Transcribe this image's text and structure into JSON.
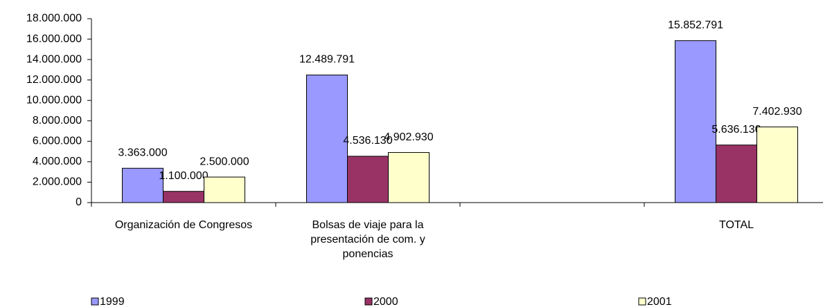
{
  "chart_data": {
    "type": "bar",
    "categories": [
      "Organización de Congresos",
      "Bolsas de viaje para la presentación de com. y ponencias",
      null,
      "TOTAL"
    ],
    "series": [
      {
        "name": "1999",
        "color": "#9999ff",
        "values": [
          3363000,
          12489791,
          null,
          15852791
        ],
        "value_labels": [
          "3.363.000",
          "12.489.791",
          null,
          "15.852.791"
        ]
      },
      {
        "name": "2000",
        "color": "#993366",
        "values": [
          1100000,
          4536130,
          null,
          5636130
        ],
        "value_labels": [
          "1.100.000",
          "4.536.130",
          null,
          "5.636.130"
        ]
      },
      {
        "name": "2001",
        "color": "#ffffcc",
        "values": [
          2500000,
          4902930,
          null,
          7402930
        ],
        "value_labels": [
          "2.500.000",
          "4.902.930",
          null,
          "7.402.930"
        ]
      }
    ],
    "ylim": [
      0,
      18000000
    ],
    "yticks": [
      0,
      {
        "value": 2000000,
        "label": "2.000.000"
      },
      {
        "value": 4000000,
        "label": "4.000.000"
      },
      {
        "value": 6000000,
        "label": "6.000.000"
      },
      {
        "value": 8000000,
        "label": "8.000.000"
      },
      {
        "value": 10000000,
        "label": "10.000.000"
      },
      {
        "value": 12000000,
        "label": "12.000.000"
      },
      {
        "value": 14000000,
        "label": "14.000.000"
      },
      {
        "value": 16000000,
        "label": "16.000.000"
      },
      {
        "value": 18000000,
        "label": "18.000.000"
      }
    ],
    "grid": false,
    "legend": "bottom"
  }
}
